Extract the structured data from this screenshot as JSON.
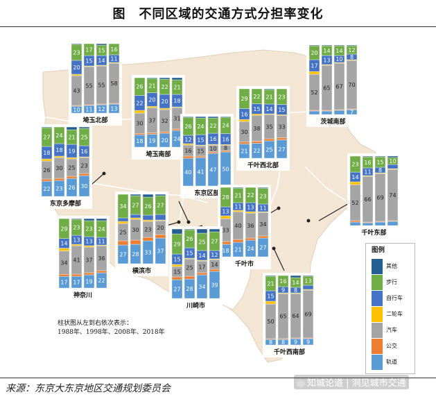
{
  "title": "图　不同区域的交通方式分担率变化",
  "source": "来源：东京大东京地区交通规划委员会",
  "watermark": "知城论道 | 洞见城市交通",
  "note": [
    "柱状图从左到右依次表示：",
    "1988年、1998年、2008年、2018年"
  ],
  "colors": {
    "rail": "#5b9bd5",
    "bus": "#ed7d31",
    "car": "#a5a5a5",
    "bike": "#ffc000",
    "cycle": "#4472c4",
    "walk": "#70ad47",
    "other": "#255e91"
  },
  "chart_data": {
    "type": "bar",
    "stacked": true,
    "categories": [
      "1988年",
      "1998年",
      "2008年",
      "2018年"
    ],
    "legend": {
      "title": "图例",
      "entries": [
        "其他",
        "步行",
        "自行车",
        "二轮车",
        "汽车",
        "公交",
        "轨道"
      ],
      "keys": [
        "other",
        "walk",
        "cycle",
        "bike",
        "car",
        "bus",
        "rail"
      ]
    },
    "stack_order": [
      "rail",
      "bus",
      "car",
      "bike",
      "cycle",
      "walk",
      "other"
    ],
    "regions": [
      {
        "name": "埼玉北部",
        "rail": [
          10,
          11,
          12,
          13
        ],
        "bus": [
          1,
          1,
          1,
          1
        ],
        "car": [
          43,
          55,
          55,
          58
        ],
        "bike": [
          2,
          1,
          1,
          1
        ],
        "cycle": [
          20,
          15,
          14,
          11
        ],
        "walk": [
          23,
          17,
          15,
          16
        ],
        "other": [
          1,
          0,
          2,
          0
        ],
        "labels": {
          "rail": [
            "10",
            "11",
            "12",
            "13"
          ],
          "car": [
            "43",
            "55",
            "55",
            "58"
          ],
          "cycle": [
            "20",
            "15",
            "14",
            "11"
          ],
          "walk": [
            "23",
            "17",
            "15",
            "16"
          ]
        }
      },
      {
        "name": "茨城南部",
        "rail": [
          5,
          5,
          6,
          7
        ],
        "bus": [
          1,
          1,
          1,
          1
        ],
        "car": [
          52,
          65,
          67,
          70
        ],
        "bike": [
          4,
          1,
          1,
          1
        ],
        "cycle": [
          17,
          13,
          10,
          8
        ],
        "walk": [
          20,
          14,
          14,
          12
        ],
        "other": [
          1,
          1,
          1,
          1
        ],
        "labels": {
          "rail": [
            "5",
            "5",
            "6",
            "7"
          ],
          "car": [
            "52",
            "65",
            "67",
            "70"
          ],
          "cycle": [
            "17",
            "13",
            "10",
            "8"
          ],
          "walk": [
            "20",
            "14",
            "14",
            "12"
          ]
        }
      },
      {
        "name": "埼玉南部",
        "rail": [
          18,
          19,
          20,
          24
        ],
        "bus": [
          2,
          2,
          2,
          2
        ],
        "car": [
          30,
          37,
          32,
          31
        ],
        "bike": [
          4,
          2,
          2,
          1
        ],
        "cycle": [
          22,
          20,
          20,
          18
        ],
        "walk": [
          26,
          21,
          22,
          21
        ],
        "other": [
          0,
          1,
          2,
          3
        ],
        "labels": {
          "rail": [
            "18",
            "19",
            "20",
            "24"
          ],
          "car": [
            "30",
            "37",
            "32",
            "31"
          ],
          "cycle": [
            "22",
            "20",
            "20",
            "18"
          ],
          "walk": [
            "26",
            "21",
            "22",
            "21"
          ]
        }
      },
      {
        "name": "千叶西北部",
        "rail": [
          21,
          22,
          25,
          27
        ],
        "bus": [
          3,
          3,
          3,
          3
        ],
        "car": [
          30,
          38,
          35,
          33
        ],
        "bike": [
          3,
          2,
          1,
          1
        ],
        "cycle": [
          16,
          15,
          14,
          15
        ],
        "walk": [
          29,
          22,
          21,
          23
        ],
        "other": [
          0,
          0,
          1,
          0
        ],
        "labels": {
          "rail": [
            "21",
            "22",
            "25",
            "27"
          ],
          "car": [
            "30",
            "38",
            "35",
            "33"
          ],
          "cycle": [
            "16",
            "15",
            "14",
            "15"
          ],
          "walk": [
            "29",
            "22",
            "21",
            "23"
          ]
        }
      },
      {
        "name": "东京区部",
        "rail": [
          40,
          41,
          47,
          50
        ],
        "bus": [
          3,
          2,
          2,
          2
        ],
        "car": [
          16,
          15,
          10,
          8
        ],
        "bike": [
          2,
          1,
          1,
          1
        ],
        "cycle": [
          12,
          15,
          16,
          16
        ],
        "walk": [
          26,
          24,
          22,
          24
        ],
        "other": [
          1,
          2,
          2,
          1
        ],
        "labels": {
          "rail": [
            "40",
            "41",
            "47",
            "50"
          ],
          "car": [
            "16",
            "15",
            "10",
            "8"
          ],
          "cycle": [
            "12",
            "15",
            "16",
            "16"
          ],
          "walk": [
            "26",
            "24",
            "22",
            "24"
          ]
        }
      },
      {
        "name": "东京多摩部",
        "rail": [
          22,
          23,
          26,
          30
        ],
        "bus": [
          3,
          3,
          3,
          3
        ],
        "car": [
          26,
          30,
          25,
          23
        ],
        "bike": [
          3,
          2,
          2,
          1
        ],
        "cycle": [
          18,
          18,
          19,
          16
        ],
        "walk": [
          27,
          24,
          21,
          25
        ],
        "other": [
          1,
          0,
          4,
          2
        ],
        "labels": {
          "rail": [
            "22",
            "23",
            "26",
            "30"
          ],
          "car": [
            "26",
            "30",
            "25",
            "23"
          ],
          "cycle": [
            "18",
            "18",
            "19",
            "16"
          ],
          "walk": [
            "27",
            "24",
            "21",
            "25"
          ]
        }
      },
      {
        "name": "千叶东部",
        "rail": [
          5,
          4,
          5,
          6
        ],
        "bus": [
          2,
          1,
          1,
          1
        ],
        "car": [
          52,
          66,
          69,
          74
        ],
        "bike": [
          4,
          1,
          1,
          1
        ],
        "cycle": [
          14,
          11,
          8,
          6
        ],
        "walk": [
          23,
          16,
          15,
          10
        ],
        "other": [
          0,
          1,
          1,
          2
        ],
        "labels": {
          "rail": [
            "5",
            "4",
            "5",
            "6"
          ],
          "car": [
            "52",
            "66",
            "69",
            "74"
          ],
          "cycle": [
            "14",
            "11",
            "8",
            "6"
          ],
          "walk": [
            "23",
            "16",
            "15",
            "10"
          ]
        }
      },
      {
        "name": "横滨市",
        "rail": [
          27,
          28,
          33,
          37
        ],
        "bus": [
          6,
          6,
          5,
          5
        ],
        "car": [
          25,
          30,
          23,
          20
        ],
        "bike": [
          3,
          2,
          2,
          1
        ],
        "cycle": [
          5,
          5,
          7,
          8
        ],
        "walk": [
          34,
          27,
          26,
          27
        ],
        "other": [
          0,
          2,
          4,
          2
        ],
        "labels": {
          "rail": [
            "27",
            "28",
            "33",
            "37"
          ],
          "car": [
            "25",
            "30",
            "23",
            "20"
          ],
          "walk": [
            "34",
            "27",
            "26",
            "27"
          ]
        }
      },
      {
        "name": "千叶市",
        "rail": [
          18,
          21,
          24,
          27
        ],
        "bus": [
          4,
          4,
          3,
          3
        ],
        "car": [
          33,
          40,
          36,
          34
        ],
        "bike": [
          4,
          2,
          2,
          1
        ],
        "cycle": [
          13,
          11,
          13,
          11
        ],
        "walk": [
          28,
          21,
          22,
          23
        ],
        "other": [
          0,
          1,
          0,
          1
        ],
        "labels": {
          "rail": [
            "18",
            "21",
            "24",
            "27"
          ],
          "car": [
            "33",
            "40",
            "36",
            "34"
          ],
          "cycle": [
            "13",
            "11",
            "13",
            "11"
          ],
          "walk": [
            "28",
            "21",
            "22",
            "23"
          ]
        }
      },
      {
        "name": "神奈川",
        "rail": [
          17,
          17,
          19,
          22
        ],
        "bus": [
          3,
          3,
          3,
          3
        ],
        "car": [
          34,
          41,
          37,
          36
        ],
        "bike": [
          4,
          2,
          2,
          1
        ],
        "cycle": [
          14,
          13,
          13,
          11
        ],
        "walk": [
          29,
          23,
          23,
          24
        ],
        "other": [
          0,
          1,
          3,
          3
        ],
        "labels": {
          "rail": [
            "17",
            "17",
            "19",
            "22"
          ],
          "car": [
            "34",
            "41",
            "37",
            "36"
          ],
          "cycle": [
            "14",
            "13",
            "13",
            "11"
          ],
          "walk": [
            "29",
            "23",
            "23",
            "24"
          ]
        }
      },
      {
        "name": "川崎市",
        "rail": [
          27,
          28,
          34,
          39
        ],
        "bus": [
          4,
          4,
          3,
          3
        ],
        "car": [
          15,
          25,
          17,
          14
        ],
        "bike": [
          3,
          1,
          1,
          1
        ],
        "cycle": [
          15,
          15,
          14,
          12
        ],
        "walk": [
          29,
          26,
          25,
          27
        ],
        "other": [
          7,
          1,
          6,
          4
        ],
        "labels": {
          "rail": [
            "27",
            "28",
            "34",
            "39"
          ],
          "car": [
            "15",
            "25",
            "17",
            "14"
          ],
          "cycle": [
            "15",
            "15",
            "14",
            "12"
          ],
          "walk": [
            "29",
            "26",
            "25",
            "27"
          ]
        }
      },
      {
        "name": "千叶西南部",
        "rail": [
          8,
          8,
          9,
          9
        ],
        "bus": [
          1,
          1,
          1,
          1
        ],
        "car": [
          50,
          65,
          64,
          69
        ],
        "bike": [
          4,
          1,
          1,
          1
        ],
        "cycle": [
          15,
          9,
          8,
          6
        ],
        "walk": [
          21,
          16,
          14,
          13
        ],
        "other": [
          1,
          0,
          3,
          1
        ],
        "labels": {
          "rail": [
            "8",
            "8",
            "9",
            "9"
          ],
          "car": [
            "50",
            "65",
            "64",
            "69"
          ],
          "cycle": [
            "15",
            "9",
            "8",
            "6"
          ],
          "walk": [
            "21",
            "16",
            "14",
            "13"
          ]
        }
      }
    ]
  }
}
